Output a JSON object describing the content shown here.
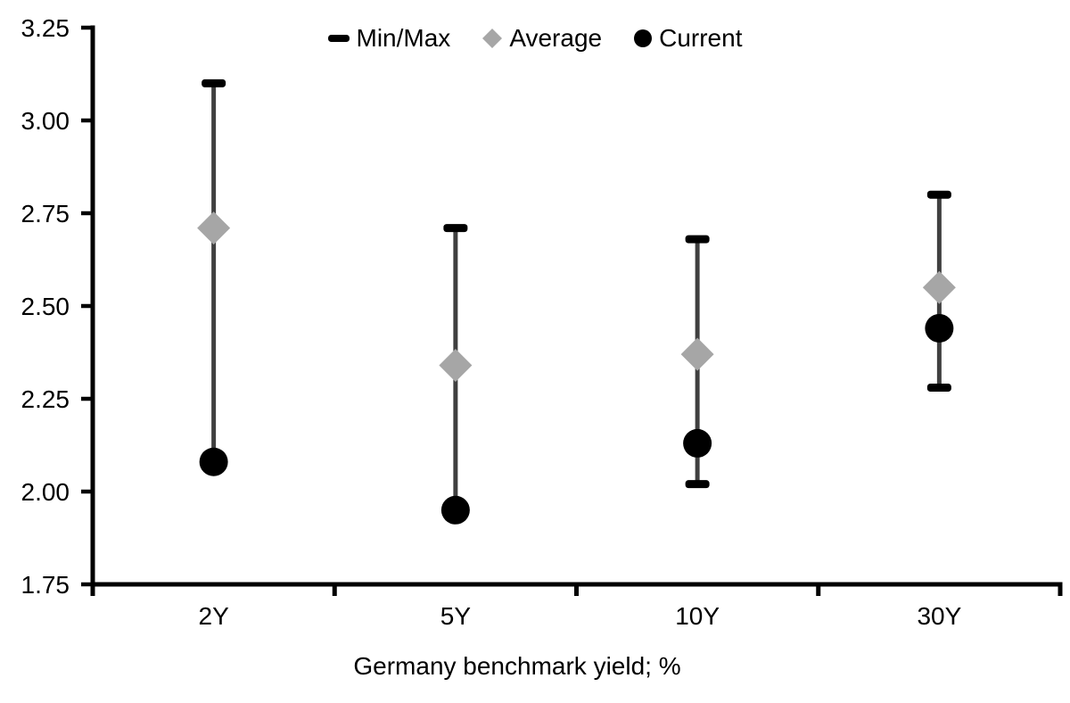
{
  "chart_data": {
    "type": "scatter",
    "title": "",
    "xlabel": "Germany benchmark yield; %",
    "ylabel": "",
    "categories": [
      "2Y",
      "5Y",
      "10Y",
      "30Y"
    ],
    "ylim": [
      1.75,
      3.25
    ],
    "ytick_labels": [
      "3.25",
      "3.00",
      "2.75",
      "2.50",
      "2.25",
      "2.00",
      "1.75"
    ],
    "grid": false,
    "legend_position": "top-center",
    "series": [
      {
        "name": "Min/Max",
        "marker": "dash",
        "color": "#000000",
        "min": [
          2.08,
          1.95,
          2.02,
          2.28
        ],
        "max": [
          3.1,
          2.71,
          2.68,
          2.8
        ]
      },
      {
        "name": "Average",
        "marker": "diamond",
        "color": "#a6a6a6",
        "values": [
          2.71,
          2.34,
          2.37,
          2.55
        ]
      },
      {
        "name": "Current",
        "marker": "circle",
        "color": "#000000",
        "values": [
          2.08,
          1.95,
          2.13,
          2.44
        ]
      }
    ],
    "colors": {
      "axis": "#000000",
      "range_line": "#404040",
      "text": "#000000"
    }
  }
}
